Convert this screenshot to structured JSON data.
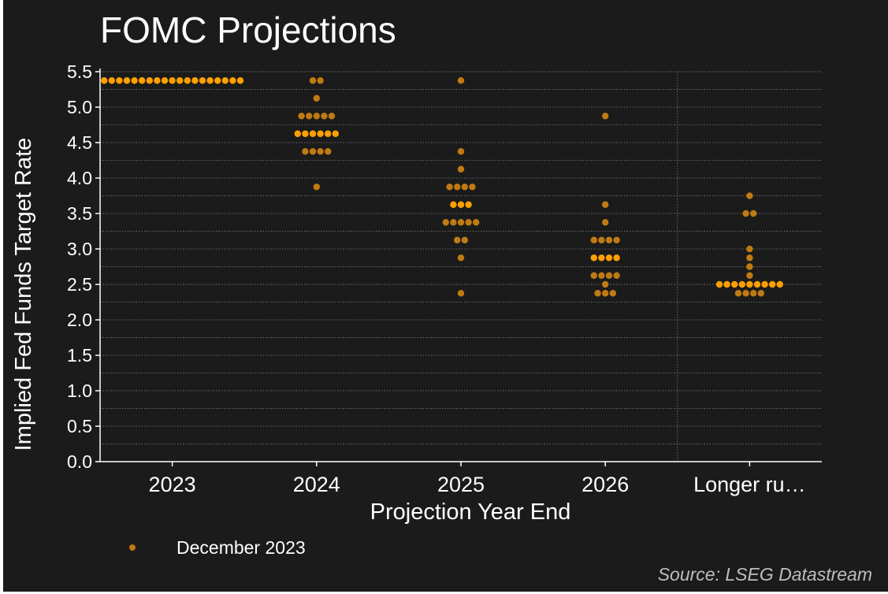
{
  "title": "FOMC Projections",
  "source": "Source: LSEG Datastream",
  "colors": {
    "background": "#1b1b1b",
    "dot": "#c07a12",
    "median_dot": "#ffa000",
    "text": "#ffffff",
    "grid": "#6b6b6b"
  },
  "chart_data": {
    "type": "scatter",
    "subtype": "dot plot",
    "title": "FOMC Projections",
    "xlabel": "Projection Year End",
    "ylabel": "Implied Fed Funds Target Rate",
    "categories": [
      "2023",
      "2024",
      "2025",
      "2026",
      "Longer ru…"
    ],
    "yticks": [
      "0.0",
      "0.5",
      "1.0",
      "1.5",
      "2.0",
      "2.5",
      "3.0",
      "3.5",
      "4.0",
      "4.5",
      "5.0",
      "5.5"
    ],
    "ylim": [
      0,
      5.5
    ],
    "grid": "dotted horizontal at 0.25 intervals",
    "legend_position": "bottom-left",
    "series": [
      {
        "name": "December 2023",
        "points": [
          {
            "category": "2023",
            "values": [
              {
                "y": 5.375,
                "n": 19,
                "median": true
              }
            ]
          },
          {
            "category": "2024",
            "values": [
              {
                "y": 5.375,
                "n": 2
              },
              {
                "y": 5.125,
                "n": 1
              },
              {
                "y": 4.875,
                "n": 5
              },
              {
                "y": 4.625,
                "n": 6,
                "median": true
              },
              {
                "y": 4.375,
                "n": 4
              },
              {
                "y": 3.875,
                "n": 1
              }
            ]
          },
          {
            "category": "2025",
            "values": [
              {
                "y": 5.375,
                "n": 1
              },
              {
                "y": 4.375,
                "n": 1
              },
              {
                "y": 4.125,
                "n": 1
              },
              {
                "y": 3.875,
                "n": 4
              },
              {
                "y": 3.625,
                "n": 3,
                "median": true
              },
              {
                "y": 3.375,
                "n": 5
              },
              {
                "y": 3.125,
                "n": 2
              },
              {
                "y": 2.875,
                "n": 1
              },
              {
                "y": 2.375,
                "n": 1
              }
            ]
          },
          {
            "category": "2026",
            "values": [
              {
                "y": 4.875,
                "n": 1
              },
              {
                "y": 3.625,
                "n": 1
              },
              {
                "y": 3.375,
                "n": 1
              },
              {
                "y": 3.125,
                "n": 4
              },
              {
                "y": 2.875,
                "n": 4,
                "median": true
              },
              {
                "y": 2.625,
                "n": 4
              },
              {
                "y": 2.5,
                "n": 1
              },
              {
                "y": 2.375,
                "n": 3
              }
            ]
          },
          {
            "category": "Longer ru…",
            "values": [
              {
                "y": 3.75,
                "n": 1
              },
              {
                "y": 3.5,
                "n": 2
              },
              {
                "y": 3.0,
                "n": 1
              },
              {
                "y": 2.875,
                "n": 1
              },
              {
                "y": 2.75,
                "n": 1
              },
              {
                "y": 2.625,
                "n": 1
              },
              {
                "y": 2.5,
                "n": 9,
                "median": true
              },
              {
                "y": 2.375,
                "n": 4
              }
            ]
          }
        ]
      }
    ]
  }
}
